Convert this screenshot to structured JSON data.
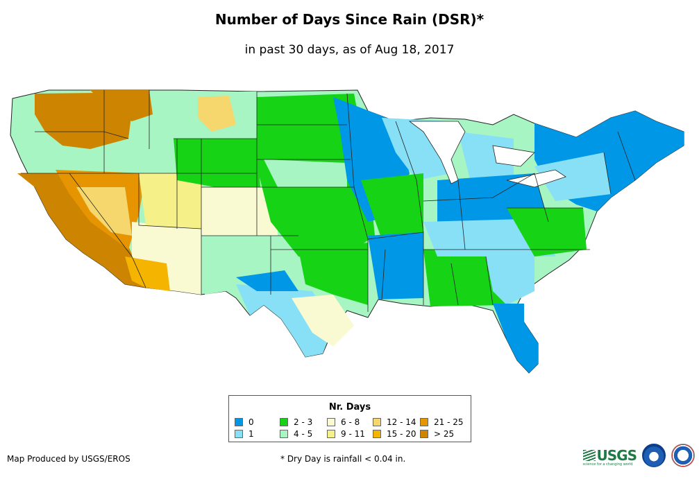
{
  "title": "Number of Days Since Rain (DSR)*",
  "subtitle": "in past 30 days, as of Aug 18, 2017",
  "legend": {
    "title": "Nr. Days",
    "items": [
      {
        "label": "0",
        "color": "#0098e6"
      },
      {
        "label": "1",
        "color": "#87e0f5"
      },
      {
        "label": "2 - 3",
        "color": "#16d316"
      },
      {
        "label": "4 - 5",
        "color": "#a8f5c4"
      },
      {
        "label": "6 - 8",
        "color": "#fafad2"
      },
      {
        "label": "9 - 11",
        "color": "#f5f088"
      },
      {
        "label": "12 - 14",
        "color": "#f5d76e"
      },
      {
        "label": "15 - 20",
        "color": "#f5b400"
      },
      {
        "label": "21 - 25",
        "color": "#e69500"
      },
      {
        "label": "> 25",
        "color": "#cd8400"
      }
    ]
  },
  "footer": {
    "credit": "Map Produced by USGS/EROS",
    "note": "* Dry Day is rainfall < 0.04 in."
  },
  "logos": [
    {
      "name": "usgs-logo",
      "text": "USGS",
      "tagline": "science for a changing world"
    },
    {
      "name": "noaa-logo",
      "text": "noaa"
    },
    {
      "name": "nws-logo",
      "text": "National Weather Service"
    }
  ]
}
